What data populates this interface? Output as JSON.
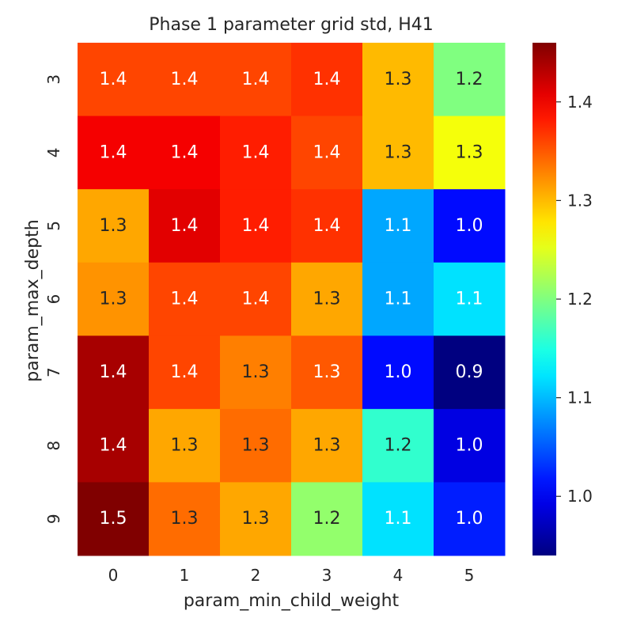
{
  "chart_data": {
    "type": "heatmap",
    "title": "Phase 1 parameter grid std, H41",
    "xlabel": "param_min_child_weight",
    "ylabel": "param_max_depth",
    "x_categories": [
      "0",
      "1",
      "2",
      "3",
      "4",
      "5"
    ],
    "y_categories": [
      "3",
      "4",
      "5",
      "6",
      "7",
      "8",
      "9"
    ],
    "values": [
      [
        1.36,
        1.36,
        1.36,
        1.37,
        1.3,
        1.2
      ],
      [
        1.4,
        1.4,
        1.38,
        1.36,
        1.3,
        1.26
      ],
      [
        1.31,
        1.41,
        1.38,
        1.37,
        1.09,
        1.01
      ],
      [
        1.32,
        1.36,
        1.36,
        1.31,
        1.09,
        1.12
      ],
      [
        1.44,
        1.36,
        1.33,
        1.35,
        1.01,
        0.94
      ],
      [
        1.44,
        1.31,
        1.34,
        1.31,
        1.16,
        0.99
      ],
      [
        1.46,
        1.34,
        1.31,
        1.21,
        1.12,
        1.02
      ]
    ],
    "display_values": [
      [
        "1.4",
        "1.4",
        "1.4",
        "1.4",
        "1.3",
        "1.2"
      ],
      [
        "1.4",
        "1.4",
        "1.4",
        "1.4",
        "1.3",
        "1.3"
      ],
      [
        "1.3",
        "1.4",
        "1.4",
        "1.4",
        "1.1",
        "1.0"
      ],
      [
        "1.3",
        "1.4",
        "1.4",
        "1.3",
        "1.1",
        "1.1"
      ],
      [
        "1.4",
        "1.4",
        "1.3",
        "1.3",
        "1.0",
        "0.9"
      ],
      [
        "1.4",
        "1.3",
        "1.3",
        "1.3",
        "1.2",
        "1.0"
      ],
      [
        "1.5",
        "1.3",
        "1.3",
        "1.2",
        "1.1",
        "1.0"
      ]
    ],
    "colorscale": "jet",
    "vmin": 0.94,
    "vmax": 1.46,
    "colorbar_ticks": [
      1.0,
      1.1,
      1.2,
      1.3,
      1.4
    ],
    "colorbar_tick_labels": [
      "1.0",
      "1.1",
      "1.2",
      "1.3",
      "1.4"
    ]
  }
}
